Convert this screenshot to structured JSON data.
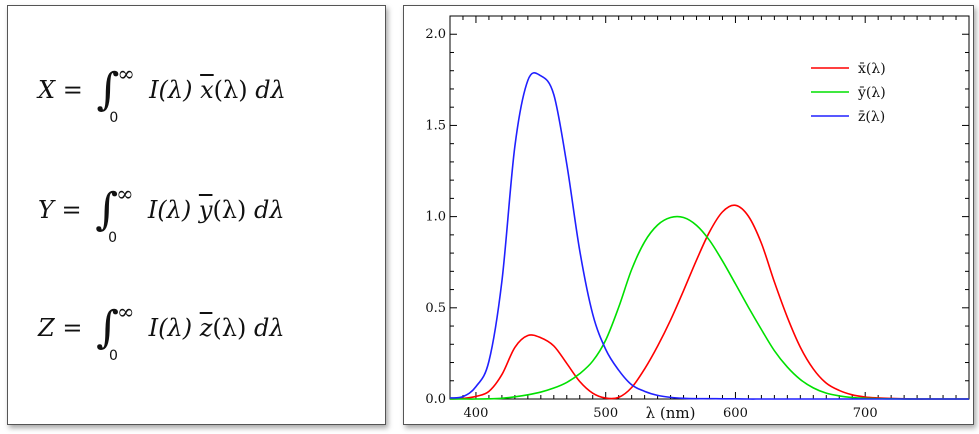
{
  "equations": [
    {
      "lhs": "X",
      "op": "=",
      "upper": "∞",
      "lower": "0",
      "integrand": "I(λ)",
      "func": "x",
      "arg": "(λ)",
      "d": "dλ"
    },
    {
      "lhs": "Y",
      "op": "=",
      "upper": "∞",
      "lower": "0",
      "integrand": "I(λ)",
      "func": "y",
      "arg": "(λ)",
      "d": "dλ"
    },
    {
      "lhs": "Z",
      "op": "=",
      "upper": "∞",
      "lower": "0",
      "integrand": "I(λ)",
      "func": "z",
      "arg": "(λ)",
      "d": "dλ"
    }
  ],
  "chart_data": {
    "type": "line",
    "title": "",
    "xlabel": "λ (nm)",
    "ylabel": "",
    "xlim": [
      380,
      780
    ],
    "ylim": [
      0,
      2.1
    ],
    "xticks": [
      400,
      500,
      600,
      700
    ],
    "yticks": [
      0.0,
      0.5,
      1.0,
      1.5,
      2.0
    ],
    "ytick_labels": [
      "0.0",
      "0.5",
      "1.0",
      "1.5",
      "2.0"
    ],
    "legend_position": "top-right",
    "grid": false,
    "x": [
      380,
      390,
      400,
      410,
      420,
      430,
      440,
      450,
      460,
      470,
      480,
      490,
      500,
      510,
      520,
      530,
      540,
      550,
      560,
      570,
      580,
      590,
      600,
      610,
      620,
      630,
      640,
      650,
      660,
      670,
      680,
      690,
      700,
      710,
      720,
      730,
      740,
      750,
      760,
      770,
      780
    ],
    "series": [
      {
        "name": "x̄(λ)",
        "color": "#ff0000",
        "values": [
          0.0,
          0.003,
          0.014,
          0.042,
          0.134,
          0.283,
          0.348,
          0.336,
          0.291,
          0.195,
          0.096,
          0.032,
          0.005,
          0.009,
          0.063,
          0.165,
          0.29,
          0.433,
          0.594,
          0.762,
          0.916,
          1.026,
          1.062,
          1.002,
          0.854,
          0.642,
          0.448,
          0.284,
          0.165,
          0.087,
          0.047,
          0.023,
          0.011,
          0.006,
          0.003,
          0.001,
          0.0,
          0.0,
          0.0,
          0.0,
          0.0
        ]
      },
      {
        "name": "ȳ(λ)",
        "color": "#00e000",
        "values": [
          0.0,
          0.0,
          0.0,
          0.001,
          0.004,
          0.012,
          0.023,
          0.038,
          0.06,
          0.091,
          0.139,
          0.208,
          0.323,
          0.503,
          0.71,
          0.862,
          0.954,
          0.995,
          0.995,
          0.952,
          0.87,
          0.757,
          0.631,
          0.503,
          0.381,
          0.265,
          0.175,
          0.107,
          0.061,
          0.032,
          0.017,
          0.008,
          0.004,
          0.002,
          0.001,
          0.0,
          0.0,
          0.0,
          0.0,
          0.0,
          0.0
        ]
      },
      {
        "name": "z̄(λ)",
        "color": "#2020ff",
        "values": [
          0.006,
          0.013,
          0.068,
          0.207,
          0.646,
          1.386,
          1.747,
          1.772,
          1.669,
          1.288,
          0.813,
          0.465,
          0.272,
          0.158,
          0.078,
          0.042,
          0.02,
          0.009,
          0.004,
          0.002,
          0.002,
          0.001,
          0.001,
          0.0,
          0.0,
          0.0,
          0.0,
          0.0,
          0.0,
          0.0,
          0.0,
          0.0,
          0.0,
          0.0,
          0.0,
          0.0,
          0.0,
          0.0,
          0.0,
          0.0,
          0.0
        ]
      }
    ]
  }
}
